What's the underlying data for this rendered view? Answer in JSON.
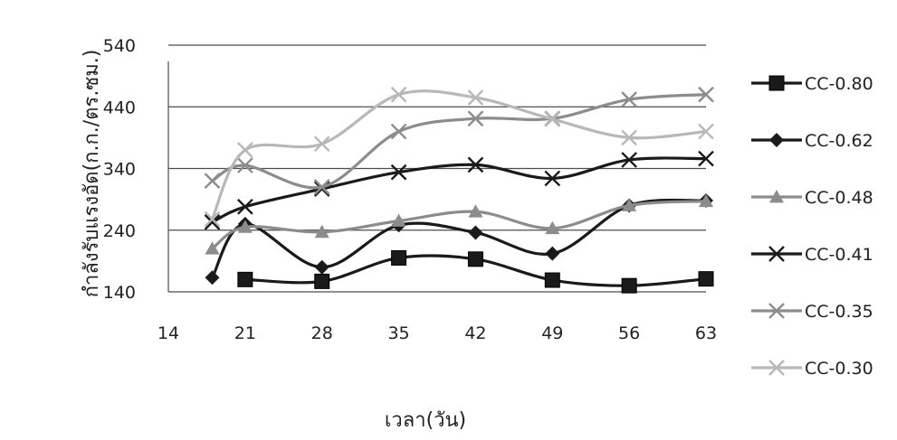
{
  "chart_data": {
    "type": "line",
    "xlabel": "เวลา(วัน)",
    "ylabel": "กำลังรับแรงอัด(ก.ก./ตร.ซม.)",
    "xlim": [
      14,
      63
    ],
    "ylim": [
      140,
      540
    ],
    "x_ticks": [
      14,
      21,
      28,
      35,
      42,
      49,
      56,
      63
    ],
    "y_ticks": [
      140,
      240,
      340,
      440,
      540
    ],
    "grid": "horizontal",
    "legend_position": "right",
    "series": [
      {
        "name": "CC-0.80",
        "color": "#1a1a1a",
        "marker": "square",
        "x": [
          21,
          28,
          35,
          42,
          49,
          56,
          63
        ],
        "y": [
          160,
          157,
          195,
          193,
          159,
          150,
          161
        ]
      },
      {
        "name": "CC-0.62",
        "color": "#1a1a1a",
        "marker": "diamond",
        "x": [
          18,
          21,
          28,
          35,
          42,
          49,
          56,
          63
        ],
        "y": [
          163,
          250,
          180,
          248,
          236,
          202,
          280,
          288
        ]
      },
      {
        "name": "CC-0.48",
        "color": "#8c8c8c",
        "marker": "triangle",
        "x": [
          18,
          21,
          28,
          35,
          42,
          49,
          56,
          63
        ],
        "y": [
          210,
          245,
          237,
          255,
          270,
          243,
          280,
          287
        ]
      },
      {
        "name": "CC-0.41",
        "color": "#1a1a1a",
        "marker": "x",
        "x": [
          18,
          21,
          28,
          35,
          42,
          49,
          56,
          63
        ],
        "y": [
          253,
          278,
          307,
          334,
          346,
          324,
          354,
          356
        ]
      },
      {
        "name": "CC-0.35",
        "color": "#8c8c8c",
        "marker": "x",
        "x": [
          18,
          21,
          28,
          35,
          42,
          49,
          56,
          63
        ],
        "y": [
          320,
          345,
          310,
          400,
          421,
          421,
          452,
          460
        ]
      },
      {
        "name": "CC-0.30",
        "color": "#b8b8b8",
        "marker": "x",
        "x": [
          18,
          21,
          28,
          35,
          42,
          49,
          56,
          63
        ],
        "y": [
          258,
          370,
          380,
          460,
          455,
          420,
          390,
          400
        ]
      }
    ]
  }
}
